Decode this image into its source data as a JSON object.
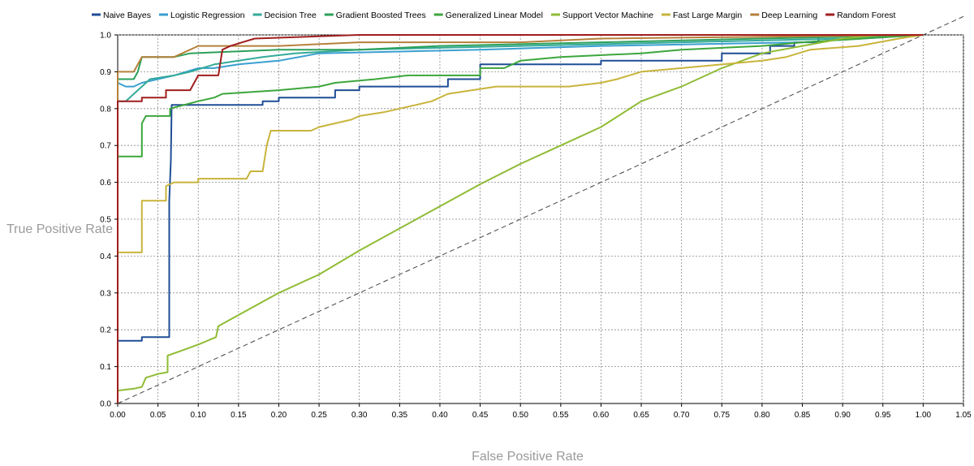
{
  "chart_data": {
    "type": "line",
    "xlabel": "False Positive Rate",
    "ylabel": "True Positive Rate",
    "xlim": [
      0,
      1.05
    ],
    "ylim": [
      0,
      1.0
    ],
    "x_ticks": [
      "0.00",
      "0.05",
      "0.10",
      "0.15",
      "0.20",
      "0.25",
      "0.30",
      "0.35",
      "0.40",
      "0.45",
      "0.50",
      "0.55",
      "0.60",
      "0.65",
      "0.70",
      "0.75",
      "0.80",
      "0.85",
      "0.90",
      "0.95",
      "1.00",
      "1.05"
    ],
    "y_ticks": [
      "0.0",
      "0.1",
      "0.2",
      "0.3",
      "0.4",
      "0.5",
      "0.6",
      "0.7",
      "0.8",
      "0.9",
      "1.0"
    ],
    "grid": true,
    "legend_position": "top",
    "diagonal_reference": true,
    "series": [
      {
        "name": "Naive Bayes",
        "color": "#1f4e96",
        "points": [
          [
            0,
            0
          ],
          [
            0,
            0.17
          ],
          [
            0.03,
            0.17
          ],
          [
            0.03,
            0.18
          ],
          [
            0.064,
            0.18
          ],
          [
            0.064,
            0.55
          ],
          [
            0.066,
            0.66
          ],
          [
            0.067,
            0.81
          ],
          [
            0.18,
            0.81
          ],
          [
            0.18,
            0.82
          ],
          [
            0.2,
            0.82
          ],
          [
            0.2,
            0.83
          ],
          [
            0.27,
            0.83
          ],
          [
            0.27,
            0.85
          ],
          [
            0.3,
            0.85
          ],
          [
            0.3,
            0.86
          ],
          [
            0.41,
            0.86
          ],
          [
            0.41,
            0.88
          ],
          [
            0.45,
            0.88
          ],
          [
            0.45,
            0.92
          ],
          [
            0.6,
            0.92
          ],
          [
            0.6,
            0.93
          ],
          [
            0.75,
            0.93
          ],
          [
            0.75,
            0.95
          ],
          [
            0.81,
            0.95
          ],
          [
            0.81,
            0.97
          ],
          [
            0.84,
            0.97
          ],
          [
            0.84,
            0.98
          ],
          [
            0.87,
            0.98
          ],
          [
            0.87,
            1.0
          ],
          [
            1.0,
            1.0
          ]
        ]
      },
      {
        "name": "Logistic Regression",
        "color": "#3a9fd0",
        "points": [
          [
            0,
            0
          ],
          [
            0,
            0.87
          ],
          [
            0.01,
            0.86
          ],
          [
            0.02,
            0.86
          ],
          [
            0.03,
            0.87
          ],
          [
            0.05,
            0.88
          ],
          [
            0.07,
            0.89
          ],
          [
            0.1,
            0.91
          ],
          [
            0.12,
            0.91
          ],
          [
            0.15,
            0.92
          ],
          [
            0.2,
            0.93
          ],
          [
            0.25,
            0.95
          ],
          [
            0.45,
            0.96
          ],
          [
            0.6,
            0.97
          ],
          [
            0.85,
            0.98
          ],
          [
            1.0,
            1.0
          ]
        ]
      },
      {
        "name": "Decision Tree",
        "color": "#33aa99",
        "points": [
          [
            0,
            0
          ],
          [
            0,
            0.82
          ],
          [
            0.01,
            0.82
          ],
          [
            0.03,
            0.86
          ],
          [
            0.04,
            0.88
          ],
          [
            0.07,
            0.89
          ],
          [
            0.09,
            0.9
          ],
          [
            0.12,
            0.92
          ],
          [
            0.18,
            0.94
          ],
          [
            0.22,
            0.95
          ],
          [
            0.3,
            0.96
          ],
          [
            0.5,
            0.97
          ],
          [
            0.7,
            0.98
          ],
          [
            0.9,
            0.99
          ],
          [
            1.0,
            1.0
          ]
        ]
      },
      {
        "name": "Gradient Boosted Trees",
        "color": "#2ca05a",
        "points": [
          [
            0,
            0
          ],
          [
            0,
            0.88
          ],
          [
            0.02,
            0.88
          ],
          [
            0.025,
            0.9
          ],
          [
            0.03,
            0.94
          ],
          [
            0.07,
            0.94
          ],
          [
            0.09,
            0.95
          ],
          [
            0.2,
            0.96
          ],
          [
            0.3,
            0.96
          ],
          [
            0.4,
            0.97
          ],
          [
            0.6,
            0.98
          ],
          [
            0.8,
            0.99
          ],
          [
            1.0,
            1.0
          ]
        ]
      },
      {
        "name": "Generalized Linear Model",
        "color": "#3ca63c",
        "points": [
          [
            0,
            0
          ],
          [
            0,
            0.67
          ],
          [
            0.03,
            0.67
          ],
          [
            0.03,
            0.76
          ],
          [
            0.035,
            0.78
          ],
          [
            0.065,
            0.78
          ],
          [
            0.065,
            0.8
          ],
          [
            0.1,
            0.82
          ],
          [
            0.12,
            0.83
          ],
          [
            0.13,
            0.84
          ],
          [
            0.2,
            0.85
          ],
          [
            0.25,
            0.86
          ],
          [
            0.27,
            0.87
          ],
          [
            0.32,
            0.88
          ],
          [
            0.36,
            0.89
          ],
          [
            0.45,
            0.89
          ],
          [
            0.45,
            0.91
          ],
          [
            0.48,
            0.91
          ],
          [
            0.5,
            0.93
          ],
          [
            0.55,
            0.94
          ],
          [
            0.65,
            0.95
          ],
          [
            0.7,
            0.96
          ],
          [
            0.8,
            0.97
          ],
          [
            0.85,
            0.98
          ],
          [
            1.0,
            1.0
          ]
        ]
      },
      {
        "name": "Support Vector Machine",
        "color": "#8fbc35",
        "points": [
          [
            0,
            0
          ],
          [
            0,
            0.035
          ],
          [
            0.02,
            0.04
          ],
          [
            0.03,
            0.045
          ],
          [
            0.035,
            0.07
          ],
          [
            0.05,
            0.08
          ],
          [
            0.062,
            0.085
          ],
          [
            0.062,
            0.13
          ],
          [
            0.075,
            0.14
          ],
          [
            0.1,
            0.16
          ],
          [
            0.122,
            0.18
          ],
          [
            0.125,
            0.21
          ],
          [
            0.15,
            0.24
          ],
          [
            0.2,
            0.3
          ],
          [
            0.25,
            0.35
          ],
          [
            0.3,
            0.415
          ],
          [
            0.35,
            0.475
          ],
          [
            0.4,
            0.535
          ],
          [
            0.45,
            0.595
          ],
          [
            0.5,
            0.65
          ],
          [
            0.55,
            0.7
          ],
          [
            0.6,
            0.75
          ],
          [
            0.65,
            0.82
          ],
          [
            0.7,
            0.86
          ],
          [
            0.75,
            0.91
          ],
          [
            0.8,
            0.95
          ],
          [
            0.85,
            0.97
          ],
          [
            0.9,
            0.99
          ],
          [
            0.95,
            1.0
          ],
          [
            1.0,
            1.0
          ]
        ]
      },
      {
        "name": "Fast Large Margin",
        "color": "#c8b43c",
        "points": [
          [
            0,
            0
          ],
          [
            0,
            0.41
          ],
          [
            0.03,
            0.41
          ],
          [
            0.03,
            0.55
          ],
          [
            0.06,
            0.55
          ],
          [
            0.06,
            0.59
          ],
          [
            0.07,
            0.6
          ],
          [
            0.1,
            0.6
          ],
          [
            0.1,
            0.61
          ],
          [
            0.16,
            0.61
          ],
          [
            0.165,
            0.63
          ],
          [
            0.18,
            0.63
          ],
          [
            0.185,
            0.7
          ],
          [
            0.19,
            0.74
          ],
          [
            0.24,
            0.74
          ],
          [
            0.25,
            0.75
          ],
          [
            0.29,
            0.77
          ],
          [
            0.3,
            0.78
          ],
          [
            0.33,
            0.79
          ],
          [
            0.35,
            0.8
          ],
          [
            0.37,
            0.81
          ],
          [
            0.39,
            0.82
          ],
          [
            0.41,
            0.84
          ],
          [
            0.44,
            0.85
          ],
          [
            0.47,
            0.86
          ],
          [
            0.56,
            0.86
          ],
          [
            0.6,
            0.87
          ],
          [
            0.62,
            0.88
          ],
          [
            0.65,
            0.9
          ],
          [
            0.7,
            0.91
          ],
          [
            0.8,
            0.93
          ],
          [
            0.83,
            0.94
          ],
          [
            0.86,
            0.96
          ],
          [
            0.92,
            0.97
          ],
          [
            0.97,
            0.99
          ],
          [
            1.0,
            1.0
          ]
        ]
      },
      {
        "name": "Deep Learning",
        "color": "#b5803a",
        "points": [
          [
            0,
            0
          ],
          [
            0,
            0.9
          ],
          [
            0.02,
            0.9
          ],
          [
            0.03,
            0.94
          ],
          [
            0.07,
            0.94
          ],
          [
            0.08,
            0.95
          ],
          [
            0.1,
            0.97
          ],
          [
            0.2,
            0.97
          ],
          [
            0.3,
            0.98
          ],
          [
            0.5,
            0.98
          ],
          [
            0.6,
            0.99
          ],
          [
            1.0,
            1.0
          ]
        ]
      },
      {
        "name": "Random Forest",
        "color": "#a01e1e",
        "points": [
          [
            0,
            0
          ],
          [
            0,
            0.82
          ],
          [
            0.03,
            0.82
          ],
          [
            0.03,
            0.83
          ],
          [
            0.06,
            0.83
          ],
          [
            0.06,
            0.85
          ],
          [
            0.09,
            0.85
          ],
          [
            0.1,
            0.89
          ],
          [
            0.125,
            0.89
          ],
          [
            0.13,
            0.96
          ],
          [
            0.14,
            0.97
          ],
          [
            0.17,
            0.99
          ],
          [
            0.3,
            1.0
          ],
          [
            1.0,
            1.0
          ]
        ]
      }
    ]
  }
}
